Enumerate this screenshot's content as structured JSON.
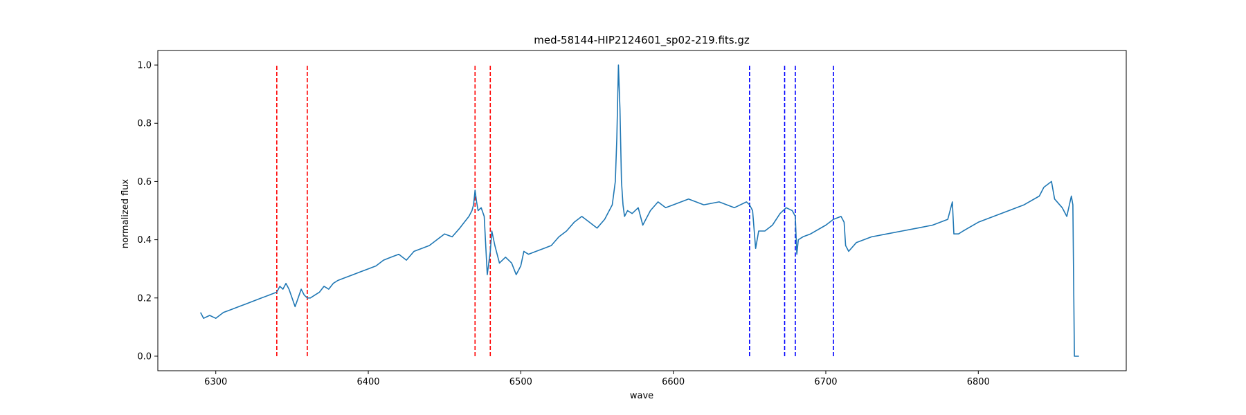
{
  "chart_data": {
    "type": "line",
    "title": "med-58144-HIP2124601_sp02-219.fits.gz",
    "xlabel": "wave",
    "ylabel": "normalized flux",
    "xlim": [
      6262,
      6897
    ],
    "ylim": [
      -0.05,
      1.05
    ],
    "x_ticks": [
      6300,
      6400,
      6500,
      6600,
      6700,
      6800
    ],
    "y_ticks": [
      0.0,
      0.2,
      0.4,
      0.6,
      0.8,
      1.0
    ],
    "x_tick_labels": [
      "6300",
      "6400",
      "6500",
      "6600",
      "6700",
      "6800"
    ],
    "y_tick_labels": [
      "0.0",
      "0.2",
      "0.4",
      "0.6",
      "0.8",
      "1.0"
    ],
    "grid": false,
    "series_color": "#1f77b4",
    "series": [
      {
        "name": "",
        "x": [
          6290,
          6292,
          6296,
          6300,
          6305,
          6310,
          6315,
          6320,
          6325,
          6330,
          6335,
          6340,
          6342,
          6344,
          6346,
          6348,
          6350,
          6352,
          6354,
          6356,
          6358,
          6360,
          6362,
          6365,
          6368,
          6371,
          6374,
          6377,
          6380,
          6385,
          6390,
          6395,
          6400,
          6405,
          6410,
          6415,
          6420,
          6425,
          6430,
          6435,
          6440,
          6445,
          6450,
          6455,
          6460,
          6463,
          6466,
          6468,
          6469,
          6470,
          6471,
          6472,
          6474,
          6476,
          6478,
          6480,
          6481,
          6483,
          6486,
          6490,
          6494,
          6497,
          6500,
          6502,
          6505,
          6510,
          6515,
          6520,
          6525,
          6530,
          6535,
          6540,
          6545,
          6550,
          6555,
          6560,
          6562,
          6563,
          6564,
          6565,
          6566,
          6567,
          6568,
          6570,
          6573,
          6577,
          6580,
          6585,
          6590,
          6595,
          6600,
          6610,
          6620,
          6630,
          6640,
          6648,
          6650,
          6652,
          6654,
          6656,
          6660,
          6665,
          6670,
          6674,
          6678,
          6680,
          6681,
          6682,
          6685,
          6690,
          6700,
          6705,
          6710,
          6712,
          6713,
          6715,
          6720,
          6730,
          6740,
          6750,
          6760,
          6770,
          6780,
          6783,
          6784,
          6787,
          6790,
          6800,
          6810,
          6820,
          6830,
          6840,
          6843,
          6848,
          6850,
          6855,
          6858,
          6861,
          6862,
          6863,
          6866
        ],
        "y": [
          0.15,
          0.13,
          0.14,
          0.13,
          0.15,
          0.16,
          0.17,
          0.18,
          0.19,
          0.2,
          0.21,
          0.22,
          0.24,
          0.23,
          0.25,
          0.23,
          0.2,
          0.17,
          0.2,
          0.23,
          0.21,
          0.2,
          0.2,
          0.21,
          0.22,
          0.24,
          0.23,
          0.25,
          0.26,
          0.27,
          0.28,
          0.29,
          0.3,
          0.31,
          0.33,
          0.34,
          0.35,
          0.33,
          0.36,
          0.37,
          0.38,
          0.4,
          0.42,
          0.41,
          0.44,
          0.46,
          0.48,
          0.5,
          0.52,
          0.57,
          0.53,
          0.5,
          0.51,
          0.48,
          0.28,
          0.36,
          0.43,
          0.38,
          0.32,
          0.34,
          0.32,
          0.28,
          0.31,
          0.36,
          0.35,
          0.36,
          0.37,
          0.38,
          0.41,
          0.43,
          0.46,
          0.48,
          0.46,
          0.44,
          0.47,
          0.52,
          0.6,
          0.75,
          1.0,
          0.85,
          0.6,
          0.52,
          0.48,
          0.5,
          0.49,
          0.51,
          0.45,
          0.5,
          0.53,
          0.51,
          0.52,
          0.54,
          0.52,
          0.53,
          0.51,
          0.53,
          0.52,
          0.5,
          0.37,
          0.43,
          0.43,
          0.45,
          0.49,
          0.51,
          0.5,
          0.48,
          0.35,
          0.4,
          0.41,
          0.42,
          0.45,
          0.47,
          0.48,
          0.46,
          0.38,
          0.36,
          0.39,
          0.41,
          0.42,
          0.43,
          0.44,
          0.45,
          0.47,
          0.53,
          0.42,
          0.42,
          0.43,
          0.46,
          0.48,
          0.5,
          0.52,
          0.55,
          0.58,
          0.6,
          0.54,
          0.51,
          0.48,
          0.55,
          0.52,
          0.0,
          0.0
        ]
      }
    ],
    "vlines": [
      {
        "x": 6340,
        "color": "#ff0000",
        "ymin": 0.0,
        "ymax": 1.0
      },
      {
        "x": 6360,
        "color": "#ff0000",
        "ymin": 0.0,
        "ymax": 1.0
      },
      {
        "x": 6470,
        "color": "#ff0000",
        "ymin": 0.0,
        "ymax": 1.0
      },
      {
        "x": 6480,
        "color": "#ff0000",
        "ymin": 0.0,
        "ymax": 1.0
      },
      {
        "x": 6650,
        "color": "#0000ff",
        "ymin": 0.0,
        "ymax": 1.0
      },
      {
        "x": 6673,
        "color": "#0000ff",
        "ymin": 0.0,
        "ymax": 1.0
      },
      {
        "x": 6680,
        "color": "#0000ff",
        "ymin": 0.0,
        "ymax": 1.0
      },
      {
        "x": 6705,
        "color": "#0000ff",
        "ymin": 0.0,
        "ymax": 1.0
      }
    ]
  }
}
